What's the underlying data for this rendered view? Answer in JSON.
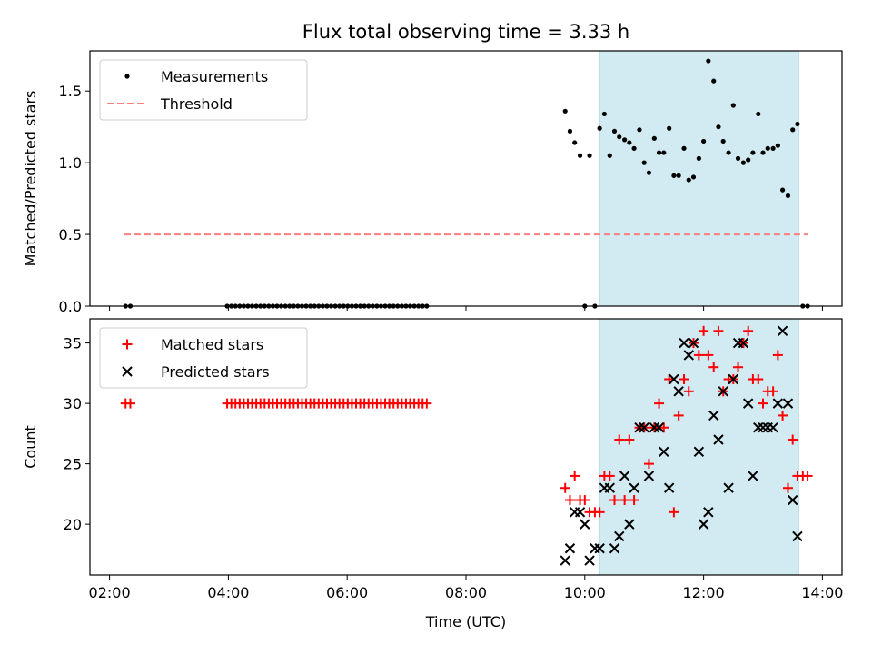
{
  "title": "Flux total observing time = 3.33 h",
  "colors": {
    "highlight": "#add8e6",
    "threshold": "#ff7f7f",
    "matched": "#ff0000",
    "predicted": "#000000",
    "measurements": "#000000"
  },
  "chart_data": [
    {
      "type": "scatter",
      "ylabel": "Matched/Predicted stars",
      "ylim": [
        0,
        1.78
      ],
      "yticks": [
        "0.0",
        "0.5",
        "1.0",
        "1.5"
      ],
      "xlim": [
        1.67,
        14.33
      ],
      "xticks": [
        2,
        4,
        6,
        8,
        10,
        12,
        14
      ],
      "legend": {
        "placement": "top-left",
        "entries": [
          "Measurements",
          "Threshold"
        ]
      },
      "highlight_span": [
        10.25,
        13.6
      ],
      "threshold": {
        "value": 0.5,
        "x": [
          2.25,
          13.75
        ]
      },
      "series": [
        {
          "name": "Measurements",
          "x": [
            2.27,
            2.35,
            3.98,
            4.05,
            4.12,
            4.19,
            4.26,
            4.33,
            4.4,
            4.47,
            4.54,
            4.61,
            4.68,
            4.75,
            4.82,
            4.89,
            4.96,
            5.03,
            5.1,
            5.17,
            5.24,
            5.31,
            5.38,
            5.45,
            5.52,
            5.59,
            5.66,
            5.73,
            5.8,
            5.87,
            5.94,
            6.01,
            6.08,
            6.15,
            6.22,
            6.29,
            6.36,
            6.43,
            6.5,
            6.57,
            6.64,
            6.71,
            6.78,
            6.85,
            6.92,
            6.99,
            7.06,
            7.13,
            7.2,
            7.27,
            7.34,
            9.67,
            9.75,
            9.83,
            9.92,
            10.0,
            10.08,
            10.17,
            10.25,
            10.33,
            10.42,
            10.5,
            10.58,
            10.67,
            10.75,
            10.83,
            10.92,
            11.0,
            11.08,
            11.17,
            11.25,
            11.33,
            11.42,
            11.5,
            11.58,
            11.67,
            11.75,
            11.83,
            11.92,
            12.0,
            12.08,
            12.17,
            12.25,
            12.33,
            12.42,
            12.5,
            12.58,
            12.67,
            12.75,
            12.83,
            12.92,
            13.0,
            13.08,
            13.17,
            13.25,
            13.33,
            13.42,
            13.5,
            13.58,
            13.67,
            13.75
          ],
          "y": [
            0,
            0,
            0,
            0,
            0,
            0,
            0,
            0,
            0,
            0,
            0,
            0,
            0,
            0,
            0,
            0,
            0,
            0,
            0,
            0,
            0,
            0,
            0,
            0,
            0,
            0,
            0,
            0,
            0,
            0,
            0,
            0,
            0,
            0,
            0,
            0,
            0,
            0,
            0,
            0,
            0,
            0,
            0,
            0,
            0,
            0,
            0,
            0,
            0,
            0,
            0,
            1.36,
            1.22,
            1.14,
            1.05,
            0,
            1.05,
            0,
            1.24,
            1.34,
            1.05,
            1.22,
            1.18,
            1.16,
            1.14,
            1.1,
            1.23,
            1.0,
            0.93,
            1.17,
            1.07,
            1.07,
            1.24,
            0.91,
            0.91,
            1.1,
            0.88,
            0.9,
            1.03,
            1.15,
            1.71,
            1.57,
            1.25,
            1.15,
            1.07,
            1.4,
            1.03,
            1.0,
            1.02,
            1.07,
            1.34,
            1.07,
            1.1,
            1.1,
            1.12,
            0.81,
            0.77,
            1.23,
            1.27,
            0,
            0
          ]
        }
      ]
    },
    {
      "type": "scatter",
      "xlabel": "Time (UTC)",
      "ylabel": "Count",
      "ylim": [
        15.8,
        37.0
      ],
      "yticks": [
        "20",
        "25",
        "30",
        "35"
      ],
      "xlim": [
        1.67,
        14.33
      ],
      "xticks": [
        2,
        4,
        6,
        8,
        10,
        12,
        14
      ],
      "xtick_labels": [
        "02:00",
        "04:00",
        "06:00",
        "08:00",
        "10:00",
        "12:00",
        "14:00"
      ],
      "legend": {
        "placement": "top-left",
        "entries": [
          "Matched stars",
          "Predicted stars"
        ]
      },
      "highlight_span": [
        10.25,
        13.6
      ],
      "series": [
        {
          "name": "Matched stars",
          "marker": "plus",
          "x": [
            2.27,
            2.35,
            3.98,
            4.05,
            4.12,
            4.19,
            4.26,
            4.33,
            4.4,
            4.47,
            4.54,
            4.61,
            4.68,
            4.75,
            4.82,
            4.89,
            4.96,
            5.03,
            5.1,
            5.17,
            5.24,
            5.31,
            5.38,
            5.45,
            5.52,
            5.59,
            5.66,
            5.73,
            5.8,
            5.87,
            5.94,
            6.01,
            6.08,
            6.15,
            6.22,
            6.29,
            6.36,
            6.43,
            6.5,
            6.57,
            6.64,
            6.71,
            6.78,
            6.85,
            6.92,
            6.99,
            7.06,
            7.13,
            7.2,
            7.27,
            7.34,
            9.67,
            9.75,
            9.83,
            9.92,
            10.0,
            10.08,
            10.17,
            10.25,
            10.33,
            10.42,
            10.5,
            10.58,
            10.67,
            10.75,
            10.83,
            10.92,
            11.0,
            11.08,
            11.17,
            11.25,
            11.33,
            11.42,
            11.5,
            11.58,
            11.67,
            11.75,
            11.83,
            11.92,
            12.0,
            12.08,
            12.17,
            12.25,
            12.33,
            12.42,
            12.5,
            12.58,
            12.67,
            12.75,
            12.83,
            12.92,
            13.0,
            13.08,
            13.17,
            13.25,
            13.33,
            13.42,
            13.5,
            13.58,
            13.67,
            13.75
          ],
          "y": [
            30,
            30,
            30,
            30,
            30,
            30,
            30,
            30,
            30,
            30,
            30,
            30,
            30,
            30,
            30,
            30,
            30,
            30,
            30,
            30,
            30,
            30,
            30,
            30,
            30,
            30,
            30,
            30,
            30,
            30,
            30,
            30,
            30,
            30,
            30,
            30,
            30,
            30,
            30,
            30,
            30,
            30,
            30,
            30,
            30,
            30,
            30,
            30,
            30,
            30,
            30,
            23,
            22,
            24,
            22,
            22,
            21,
            21,
            21,
            24,
            24,
            22,
            27,
            22,
            27,
            22,
            28,
            28,
            25,
            28,
            30,
            28,
            32,
            21,
            29,
            32,
            31,
            35,
            34,
            36,
            34,
            33,
            36,
            31,
            32,
            32,
            33,
            35,
            36,
            32,
            32,
            30,
            31,
            31,
            34,
            29,
            23,
            27,
            24,
            24,
            24
          ]
        },
        {
          "name": "Predicted stars",
          "marker": "x",
          "x": [
            9.67,
            9.75,
            9.83,
            9.92,
            10.0,
            10.08,
            10.17,
            10.25,
            10.33,
            10.42,
            10.5,
            10.58,
            10.67,
            10.75,
            10.83,
            10.92,
            11.0,
            11.08,
            11.17,
            11.25,
            11.33,
            11.42,
            11.5,
            11.58,
            11.67,
            11.75,
            11.83,
            11.92,
            12.0,
            12.08,
            12.17,
            12.25,
            12.33,
            12.42,
            12.5,
            12.58,
            12.67,
            12.75,
            12.83,
            12.92,
            13.0,
            13.08,
            13.17,
            13.25,
            13.33,
            13.42,
            13.5,
            13.58
          ],
          "y": [
            17,
            18,
            21,
            21,
            20,
            17,
            18,
            18,
            23,
            23,
            18,
            19,
            24,
            20,
            23,
            28,
            28,
            24,
            28,
            28,
            26,
            23,
            32,
            31,
            35,
            34,
            35,
            26,
            20,
            21,
            29,
            27,
            31,
            23,
            32,
            35,
            35,
            30,
            24,
            28,
            28,
            28,
            28,
            30,
            36,
            30,
            22,
            19
          ]
        }
      ]
    }
  ]
}
